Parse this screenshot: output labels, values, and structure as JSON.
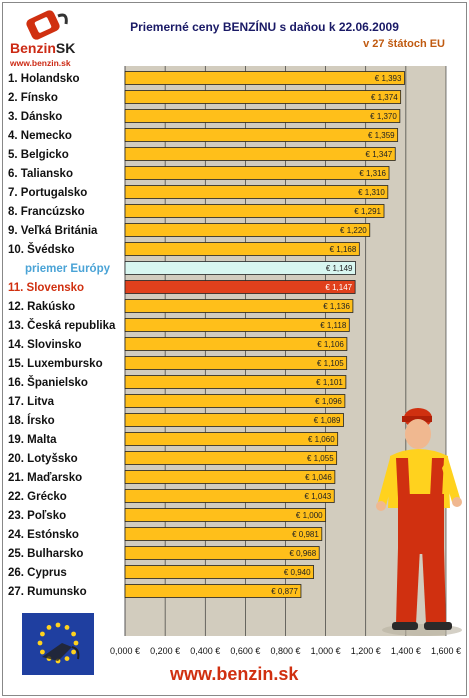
{
  "header": {
    "title": "Priemerné ceny BENZÍNU s daňou k 22.06.2009",
    "subtitle": "v 27 štátoch EU"
  },
  "logo": {
    "brand": "Benzin",
    "brand_suffix": "SK",
    "url": "www.benzin.sk"
  },
  "footer": {
    "url": "www.benzin.sk"
  },
  "colors": {
    "bar": "#ffbf1a",
    "bar_highlight": "#e0401c",
    "bar_average": "#d8f6f0",
    "plot_background": "#d2ccbe",
    "label_highlight": "#d03010",
    "label_average": "#4aa3d6"
  },
  "chart_data": {
    "type": "bar",
    "orientation": "horizontal",
    "title": "Priemerné ceny BENZÍNU s daňou k 22.06.2009",
    "subtitle": "v 27 štátoch EU",
    "xlim": [
      0,
      1.6
    ],
    "x_tick_labels": [
      "0,000 €",
      "0,200 €",
      "0,400 €",
      "0,600 €",
      "0,800 €",
      "1,000 €",
      "1,200 €",
      "1,400 €",
      "1,600 €"
    ],
    "grid": true,
    "categories": [
      "1. Holandsko",
      "2. Fínsko",
      "3. Dánsko",
      "4. Nemecko",
      "5. Belgicko",
      "6. Taliansko",
      "7. Portugalsko",
      "8. Francúzsko",
      "9. Veľká Británia",
      "10. Švédsko",
      "priemer Európy",
      "11. Slovensko",
      "12. Rakúsko",
      "13. Česká republika",
      "14. Slovinsko",
      "15. Luxembursko",
      "16. Španielsko",
      "17. Litva",
      "18. Írsko",
      "19. Malta",
      "20. Lotyšsko",
      "21. Maďarsko",
      "22. Grécko",
      "23. Poľsko",
      "24. Estónsko",
      "25. Bulharsko",
      "26. Cyprus",
      "27. Rumunsko"
    ],
    "values": [
      1.393,
      1.374,
      1.37,
      1.359,
      1.347,
      1.316,
      1.31,
      1.291,
      1.22,
      1.168,
      1.149,
      1.147,
      1.136,
      1.118,
      1.106,
      1.105,
      1.101,
      1.096,
      1.089,
      1.06,
      1.055,
      1.046,
      1.043,
      1.0,
      0.981,
      0.968,
      0.94,
      0.877
    ],
    "value_labels": [
      "€ 1,393",
      "€ 1,374",
      "€ 1,370",
      "€ 1,359",
      "€ 1,347",
      "€ 1,316",
      "€ 1,310",
      "€ 1,291",
      "€ 1,220",
      "€ 1,168",
      "€ 1,149",
      "€ 1,147",
      "€ 1,136",
      "€ 1,118",
      "€ 1,106",
      "€ 1,105",
      "€ 1,101",
      "€ 1,096",
      "€ 1,089",
      "€ 1,060",
      "€ 1,055",
      "€ 1,046",
      "€ 1,043",
      "€ 1,000",
      "€ 0,981",
      "€ 0,968",
      "€ 0,940",
      "€ 0,877"
    ],
    "highlight_index": 11,
    "average_index": 10
  }
}
